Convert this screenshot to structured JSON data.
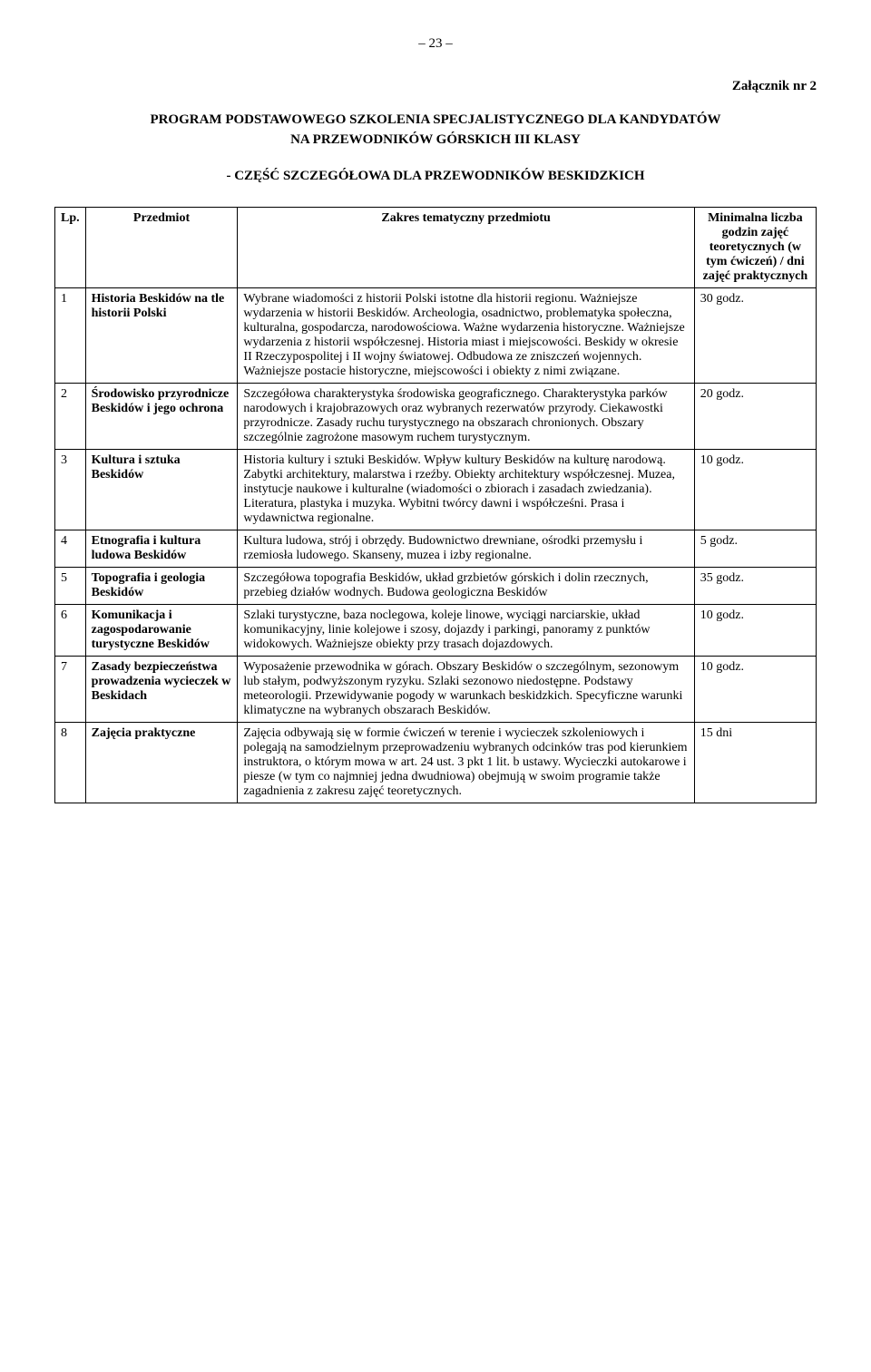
{
  "page_number": "– 23 –",
  "annex_label": "Załącznik nr 2",
  "main_title_line1": "PROGRAM PODSTAWOWEGO SZKOLENIA SPECJALISTYCZNEGO DLA KANDYDATÓW",
  "main_title_line2": "NA PRZEWODNIKÓW GÓRSKICH III KLASY",
  "subtitle": "- CZĘŚĆ SZCZEGÓŁOWA DLA PRZEWODNIKÓW BESKIDZKICH",
  "headers": {
    "lp": "Lp.",
    "subject": "Przedmiot",
    "scope": "Zakres tematyczny przedmiotu",
    "hours": "Minimalna liczba godzin zajęć teoretycznych (w tym ćwiczeń) / dni zajęć praktycznych"
  },
  "rows": [
    {
      "lp": "1",
      "subject": "Historia Beskidów na tle historii Polski",
      "scope": "Wybrane wiadomości z historii Polski istotne dla historii regionu. Ważniejsze wydarzenia w historii Beskidów. Archeologia, osadnictwo, problematyka społeczna, kulturalna, gospodarcza, narodowościowa. Ważne wydarzenia historyczne. Ważniejsze wydarzenia z historii współczesnej. Historia miast i miejscowości. Beskidy w okresie II Rzeczypospolitej i II wojny światowej. Odbudowa ze zniszczeń wojennych. Ważniejsze postacie historyczne, miejscowości i obiekty z nimi związane.",
      "hours": "30 godz."
    },
    {
      "lp": "2",
      "subject": "Środowisko przyrodnicze Beskidów i jego ochrona",
      "scope": "Szczegółowa charakterystyka środowiska geograficznego. Charakterystyka parków narodowych i krajobrazowych oraz wybranych rezerwatów przyrody. Ciekawostki przyrodnicze. Zasady ruchu turystycznego na obszarach chronionych. Obszary szczególnie zagrożone masowym ruchem turystycznym.",
      "hours": "20 godz."
    },
    {
      "lp": "3",
      "subject": "Kultura i sztuka Beskidów",
      "scope": "Historia kultury i sztuki Beskidów. Wpływ kultury Beskidów na kulturę narodową. Zabytki architektury, malarstwa i rzeźby. Obiekty architektury współczesnej. Muzea, instytucje naukowe i kulturalne (wiadomości o zbiorach i zasadach zwiedzania). Literatura, plastyka i muzyka. Wybitni twórcy dawni i współcześni. Prasa i wydawnictwa regionalne.",
      "hours": "10 godz."
    },
    {
      "lp": "4",
      "subject": "Etnografia i kultura ludowa Beskidów",
      "scope": "Kultura ludowa, strój i obrzędy. Budownictwo drewniane, ośrodki przemysłu i rzemiosła ludowego. Skanseny, muzea i izby regionalne.",
      "hours": "5 godz."
    },
    {
      "lp": "5",
      "subject": "Topografia i geologia Beskidów",
      "scope": "Szczegółowa topografia Beskidów, układ grzbietów górskich i dolin rzecznych, przebieg działów wodnych. Budowa geologiczna Beskidów",
      "hours": "35 godz."
    },
    {
      "lp": "6",
      "subject": "Komunikacja i zagospodarowanie turystyczne Beskidów",
      "scope": "Szlaki turystyczne, baza noclegowa, koleje linowe, wyciągi narciarskie, układ komunikacyjny, linie kolejowe i szosy, dojazdy i parkingi, panoramy z punktów widokowych. Ważniejsze obiekty przy trasach dojazdowych.",
      "hours": "10 godz."
    },
    {
      "lp": "7",
      "subject": "Zasady bezpieczeństwa prowadzenia wycieczek w Beskidach",
      "scope": "Wyposażenie przewodnika w górach. Obszary Beskidów o szczególnym, sezonowym lub stałym, podwyższonym ryzyku. Szlaki sezonowo niedostępne. Podstawy meteorologii. Przewidywanie pogody w warunkach beskidzkich. Specyficzne warunki klimatyczne na wybranych obszarach Beskidów.",
      "hours": "10 godz."
    },
    {
      "lp": "8",
      "subject": "Zajęcia praktyczne",
      "scope": "Zajęcia odbywają się w formie ćwiczeń w terenie i wycieczek szkoleniowych i polegają na samodzielnym przeprowadzeniu wybranych odcinków tras pod kierunkiem instruktora, o którym mowa w art. 24 ust. 3 pkt 1 lit. b ustawy. Wycieczki autokarowe i piesze (w tym co najmniej jedna dwudniowa) obejmują w swoim programie także zagadnienia z zakresu zajęć teoretycznych.",
      "hours": "15 dni"
    }
  ]
}
